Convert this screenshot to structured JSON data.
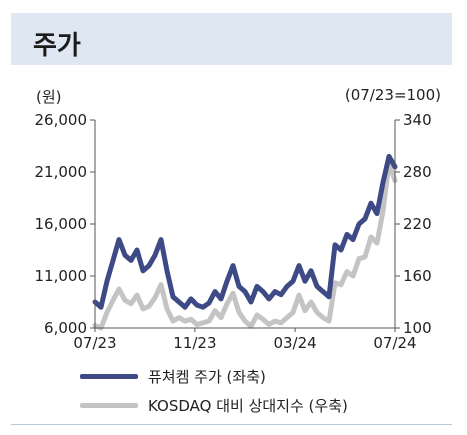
{
  "header": {
    "title": "주가"
  },
  "chart_data": {
    "type": "line",
    "left_axis": {
      "unit_label": "(원)",
      "min": 6000,
      "max": 26000,
      "ticks": [
        6000,
        11000,
        16000,
        21000,
        26000
      ],
      "tick_labels": [
        "6,000",
        "11,000",
        "16,000",
        "21,000",
        "26,000"
      ]
    },
    "right_axis": {
      "unit_label": "(07/23=100)",
      "min": 100,
      "max": 340,
      "ticks": [
        100,
        160,
        220,
        280,
        340
      ],
      "tick_labels": [
        "100",
        "160",
        "220",
        "280",
        "340"
      ]
    },
    "x_axis": {
      "tick_labels": [
        "07/23",
        "11/23",
        "03/24",
        "07/24"
      ],
      "tick_positions": [
        0,
        0.333,
        0.667,
        1.0
      ]
    },
    "grid": false,
    "series": [
      {
        "name": "퓨쳐켐 주가 (좌축)",
        "axis": "left",
        "color": "#3e4a86",
        "x": [
          0,
          0.02,
          0.04,
          0.06,
          0.08,
          0.1,
          0.12,
          0.14,
          0.16,
          0.18,
          0.2,
          0.22,
          0.24,
          0.26,
          0.28,
          0.3,
          0.32,
          0.34,
          0.36,
          0.38,
          0.4,
          0.42,
          0.44,
          0.46,
          0.48,
          0.5,
          0.52,
          0.54,
          0.56,
          0.58,
          0.6,
          0.62,
          0.64,
          0.66,
          0.68,
          0.7,
          0.72,
          0.74,
          0.76,
          0.78,
          0.8,
          0.82,
          0.84,
          0.86,
          0.88,
          0.9,
          0.92,
          0.94,
          0.96,
          0.98,
          1.0
        ],
        "values": [
          8500,
          8000,
          10500,
          12500,
          14500,
          13000,
          12500,
          13500,
          11500,
          12000,
          13000,
          14500,
          11500,
          9000,
          8500,
          8000,
          8800,
          8200,
          8000,
          8400,
          9500,
          8800,
          10500,
          12000,
          10000,
          9500,
          8500,
          10000,
          9500,
          8800,
          9500,
          9200,
          10000,
          10500,
          12000,
          10500,
          11500,
          10000,
          9500,
          9000,
          14000,
          13500,
          15000,
          14500,
          16000,
          16500,
          18000,
          17000,
          20000,
          22500,
          21500
        ]
      },
      {
        "name": "KOSDAQ 대비 상대지수 (우축)",
        "axis": "right",
        "color": "#c4c4c4",
        "x": [
          0,
          0.02,
          0.04,
          0.06,
          0.08,
          0.1,
          0.12,
          0.14,
          0.16,
          0.18,
          0.2,
          0.22,
          0.24,
          0.26,
          0.28,
          0.3,
          0.32,
          0.34,
          0.36,
          0.38,
          0.4,
          0.42,
          0.44,
          0.46,
          0.48,
          0.5,
          0.52,
          0.54,
          0.56,
          0.58,
          0.6,
          0.62,
          0.64,
          0.66,
          0.68,
          0.7,
          0.72,
          0.74,
          0.76,
          0.78,
          0.8,
          0.82,
          0.84,
          0.86,
          0.88,
          0.9,
          0.92,
          0.94,
          0.96,
          0.98,
          1.0
        ],
        "values": [
          103,
          100,
          118,
          132,
          145,
          132,
          128,
          138,
          122,
          125,
          135,
          150,
          122,
          108,
          112,
          108,
          110,
          104,
          106,
          108,
          120,
          112,
          128,
          140,
          118,
          108,
          102,
          115,
          110,
          104,
          108,
          106,
          112,
          118,
          138,
          120,
          130,
          118,
          112,
          108,
          152,
          150,
          165,
          160,
          180,
          182,
          205,
          198,
          235,
          290,
          270
        ]
      }
    ]
  }
}
